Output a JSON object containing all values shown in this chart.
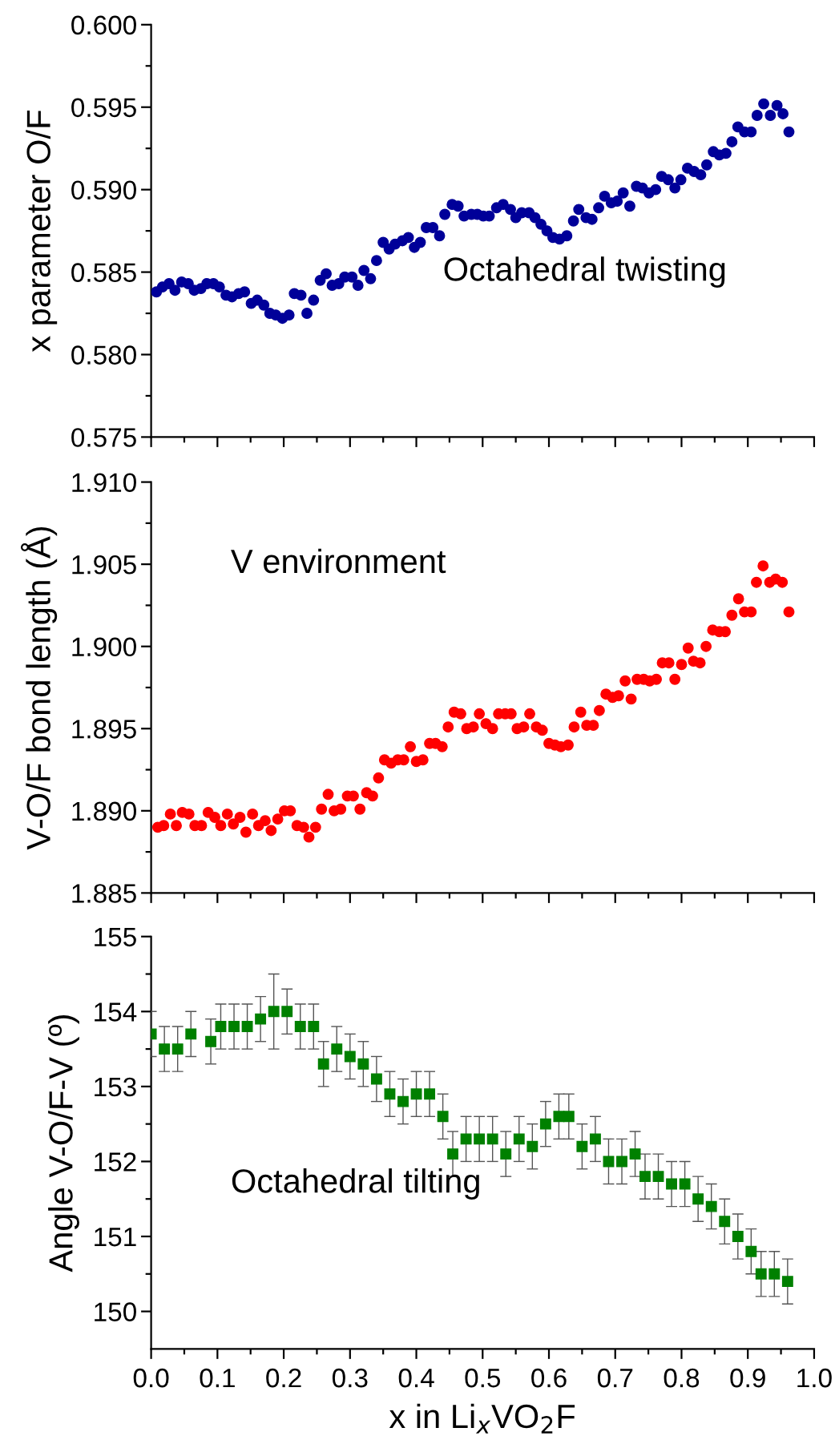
{
  "chart_data": [
    {
      "type": "scatter",
      "ylabel": "x parameter O/F",
      "annotations": [
        "Octahedral twisting"
      ],
      "marker": "circle",
      "tick_labels": "y",
      "grid": false,
      "xlim": [
        0,
        1
      ],
      "xticks": [
        0.0,
        0.1,
        0.2,
        0.3,
        0.4,
        0.5,
        0.6,
        0.7,
        0.8,
        0.9,
        1.0
      ],
      "ylim": [
        0.575,
        0.6
      ],
      "yticks": [
        {
          "value": 0.575,
          "label": "0.575"
        },
        {
          "value": 0.58,
          "label": "0.580"
        },
        {
          "value": 0.585,
          "label": "0.585"
        },
        {
          "value": 0.59,
          "label": "0.590"
        },
        {
          "value": 0.595,
          "label": "0.595"
        },
        {
          "value": 0.6,
          "label": "0.600"
        }
      ],
      "series": [
        {
          "color": "#000099",
          "x": [
            0.008,
            0.017,
            0.027,
            0.036,
            0.046,
            0.056,
            0.065,
            0.075,
            0.084,
            0.094,
            0.103,
            0.113,
            0.122,
            0.132,
            0.141,
            0.151,
            0.16,
            0.17,
            0.179,
            0.188,
            0.198,
            0.208,
            0.216,
            0.226,
            0.235,
            0.245,
            0.255,
            0.264,
            0.273,
            0.283,
            0.292,
            0.303,
            0.312,
            0.321,
            0.331,
            0.34,
            0.35,
            0.359,
            0.368,
            0.379,
            0.388,
            0.397,
            0.406,
            0.415,
            0.425,
            0.435,
            0.443,
            0.454,
            0.463,
            0.472,
            0.483,
            0.492,
            0.501,
            0.51,
            0.521,
            0.531,
            0.542,
            0.55,
            0.559,
            0.57,
            0.579,
            0.588,
            0.597,
            0.606,
            0.616,
            0.627,
            0.637,
            0.645,
            0.656,
            0.665,
            0.675,
            0.684,
            0.694,
            0.703,
            0.712,
            0.722,
            0.732,
            0.741,
            0.751,
            0.761,
            0.77,
            0.78,
            0.79,
            0.799,
            0.809,
            0.819,
            0.829,
            0.838,
            0.848,
            0.857,
            0.867,
            0.876,
            0.885,
            0.895,
            0.905,
            0.914,
            0.924,
            0.934,
            0.944,
            0.953,
            0.962
          ],
          "values": [
            0.5838,
            0.5841,
            0.5843,
            0.5839,
            0.5844,
            0.5843,
            0.5839,
            0.584,
            0.5843,
            0.5843,
            0.5841,
            0.5836,
            0.5835,
            0.5837,
            0.5838,
            0.5831,
            0.5833,
            0.583,
            0.5825,
            0.5824,
            0.5822,
            0.5824,
            0.5837,
            0.5836,
            0.5825,
            0.5833,
            0.5845,
            0.5849,
            0.5842,
            0.5843,
            0.5847,
            0.5847,
            0.5842,
            0.5851,
            0.5846,
            0.5857,
            0.5868,
            0.5864,
            0.5867,
            0.5869,
            0.5871,
            0.5865,
            0.5868,
            0.5877,
            0.5877,
            0.5872,
            0.5885,
            0.5891,
            0.589,
            0.5884,
            0.5885,
            0.5885,
            0.5884,
            0.5884,
            0.5889,
            0.5891,
            0.5888,
            0.5883,
            0.5886,
            0.5886,
            0.5883,
            0.5879,
            0.5875,
            0.5871,
            0.587,
            0.5872,
            0.5881,
            0.5888,
            0.5883,
            0.5882,
            0.5889,
            0.5896,
            0.5892,
            0.5893,
            0.5898,
            0.589,
            0.5902,
            0.5901,
            0.5898,
            0.59,
            0.5908,
            0.5906,
            0.5901,
            0.5906,
            0.5913,
            0.5911,
            0.5909,
            0.5915,
            0.5923,
            0.5921,
            0.5922,
            0.5929,
            0.5938,
            0.5935,
            0.5935,
            0.5945,
            0.5952,
            0.5945,
            0.5951,
            0.5946,
            0.5935
          ]
        }
      ]
    },
    {
      "type": "scatter",
      "ylabel": "V-O/F bond length (Å)",
      "annotations": [
        "V environment"
      ],
      "marker": "circle",
      "tick_labels": "y",
      "grid": false,
      "xlim": [
        0,
        1
      ],
      "xticks": [
        0.0,
        0.1,
        0.2,
        0.3,
        0.4,
        0.5,
        0.6,
        0.7,
        0.8,
        0.9,
        1.0
      ],
      "ylim": [
        1.885,
        1.91
      ],
      "yticks": [
        {
          "value": 1.885,
          "label": "1.885"
        },
        {
          "value": 1.89,
          "label": "1.890"
        },
        {
          "value": 1.895,
          "label": "1.895"
        },
        {
          "value": 1.9,
          "label": "1.900"
        },
        {
          "value": 1.905,
          "label": "1.905"
        },
        {
          "value": 1.91,
          "label": "1.910"
        }
      ],
      "series": [
        {
          "color": "#ff0000",
          "x": [
            0.01,
            0.019,
            0.029,
            0.038,
            0.047,
            0.057,
            0.066,
            0.076,
            0.086,
            0.096,
            0.105,
            0.115,
            0.124,
            0.134,
            0.143,
            0.153,
            0.162,
            0.172,
            0.181,
            0.191,
            0.201,
            0.21,
            0.22,
            0.23,
            0.238,
            0.248,
            0.257,
            0.267,
            0.276,
            0.286,
            0.296,
            0.305,
            0.315,
            0.325,
            0.334,
            0.343,
            0.352,
            0.362,
            0.372,
            0.381,
            0.391,
            0.4,
            0.41,
            0.42,
            0.429,
            0.439,
            0.448,
            0.457,
            0.467,
            0.476,
            0.486,
            0.495,
            0.505,
            0.515,
            0.524,
            0.534,
            0.543,
            0.552,
            0.562,
            0.571,
            0.581,
            0.59,
            0.6,
            0.609,
            0.618,
            0.629,
            0.638,
            0.648,
            0.657,
            0.667,
            0.676,
            0.686,
            0.696,
            0.705,
            0.715,
            0.724,
            0.733,
            0.743,
            0.752,
            0.762,
            0.771,
            0.781,
            0.79,
            0.8,
            0.81,
            0.818,
            0.828,
            0.837,
            0.847,
            0.857,
            0.866,
            0.876,
            0.886,
            0.895,
            0.905,
            0.913,
            0.923,
            0.933,
            0.942,
            0.952,
            0.962
          ],
          "values": [
            1.889,
            1.8891,
            1.8898,
            1.8891,
            1.8899,
            1.8898,
            1.8891,
            1.8891,
            1.8899,
            1.8896,
            1.8891,
            1.8898,
            1.8892,
            1.8896,
            1.8887,
            1.8898,
            1.8891,
            1.8894,
            1.8888,
            1.8895,
            1.89,
            1.89,
            1.8891,
            1.889,
            1.8884,
            1.889,
            1.8901,
            1.891,
            1.89,
            1.8901,
            1.8909,
            1.8909,
            1.8901,
            1.8911,
            1.8909,
            1.892,
            1.8931,
            1.8929,
            1.8931,
            1.8931,
            1.8939,
            1.893,
            1.8931,
            1.8941,
            1.8941,
            1.8939,
            1.8951,
            1.896,
            1.8959,
            1.895,
            1.8951,
            1.8959,
            1.8953,
            1.895,
            1.8959,
            1.8959,
            1.8959,
            1.895,
            1.8951,
            1.8959,
            1.8951,
            1.8949,
            1.8941,
            1.894,
            1.8939,
            1.894,
            1.8951,
            1.896,
            1.8952,
            1.8952,
            1.8961,
            1.8971,
            1.8969,
            1.897,
            1.8979,
            1.8968,
            1.898,
            1.898,
            1.8979,
            1.898,
            1.899,
            1.899,
            1.898,
            1.8989,
            1.8999,
            1.8991,
            1.899,
            1.9,
            1.901,
            1.9009,
            1.9009,
            1.9019,
            1.9029,
            1.9021,
            1.9021,
            1.9039,
            1.9049,
            1.9039,
            1.9041,
            1.9039,
            1.9021
          ]
        }
      ]
    },
    {
      "type": "scatter",
      "ylabel": "Angle V-O/F-V (º)",
      "xlabel": "x in Li$_{x}$VO$_{2}$F",
      "annotations": [
        "Octahedral tilting"
      ],
      "marker": "square",
      "grid": false,
      "xlim": [
        0,
        1
      ],
      "xticks": [
        {
          "value": 0,
          "label": "0.0"
        },
        0.1,
        0.2,
        0.3,
        0.4,
        0.5,
        0.6,
        0.7,
        0.8,
        0.9,
        {
          "value": 1,
          "label": "1.0"
        }
      ],
      "ylim": [
        149.5,
        155
      ],
      "yticks": [
        150,
        151,
        152,
        153,
        154,
        155
      ],
      "series": [
        {
          "color": "#008000",
          "x": [
            0.0,
            0.02,
            0.04,
            0.06,
            0.09,
            0.105,
            0.125,
            0.145,
            0.165,
            0.185,
            0.205,
            0.225,
            0.245,
            0.26,
            0.28,
            0.3,
            0.32,
            0.34,
            0.36,
            0.38,
            0.4,
            0.42,
            0.44,
            0.455,
            0.475,
            0.495,
            0.515,
            0.535,
            0.555,
            0.575,
            0.595,
            0.615,
            0.63,
            0.65,
            0.67,
            0.69,
            0.71,
            0.73,
            0.745,
            0.765,
            0.785,
            0.805,
            0.825,
            0.845,
            0.865,
            0.885,
            0.905,
            0.92,
            0.94,
            0.96
          ],
          "values": [
            153.7,
            153.5,
            153.5,
            153.7,
            153.6,
            153.8,
            153.8,
            153.8,
            153.9,
            154.0,
            154.0,
            153.8,
            153.8,
            153.3,
            153.5,
            153.4,
            153.3,
            153.1,
            152.9,
            152.8,
            152.9,
            152.9,
            152.6,
            152.1,
            152.3,
            152.3,
            152.3,
            152.1,
            152.3,
            152.2,
            152.5,
            152.6,
            152.6,
            152.2,
            152.3,
            152.0,
            152.0,
            152.1,
            151.8,
            151.8,
            151.7,
            151.7,
            151.5,
            151.4,
            151.2,
            151.0,
            150.8,
            150.5,
            150.5,
            150.4
          ],
          "errors": [
            0.3,
            0.3,
            0.3,
            0.3,
            0.3,
            0.3,
            0.3,
            0.3,
            0.3,
            0.5,
            0.3,
            0.3,
            0.3,
            0.3,
            0.3,
            0.3,
            0.3,
            0.3,
            0.3,
            0.3,
            0.3,
            0.3,
            0.3,
            0.3,
            0.3,
            0.3,
            0.3,
            0.3,
            0.3,
            0.3,
            0.3,
            0.3,
            0.3,
            0.3,
            0.3,
            0.3,
            0.3,
            0.3,
            0.3,
            0.3,
            0.3,
            0.3,
            0.3,
            0.3,
            0.3,
            0.3,
            0.3,
            0.3,
            0.3,
            0.3
          ]
        }
      ]
    }
  ]
}
